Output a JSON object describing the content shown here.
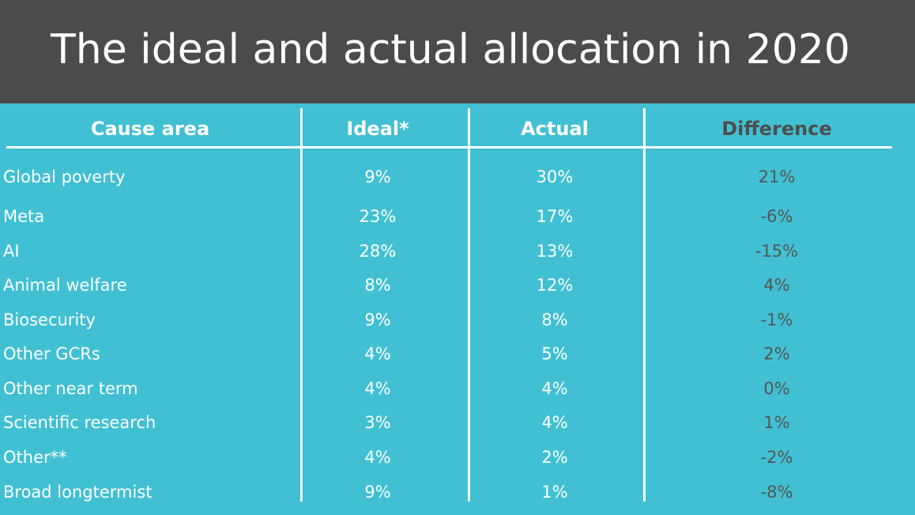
{
  "header": {
    "title": "The ideal and actual allocation in 2020"
  },
  "table": {
    "columns": [
      "Cause area",
      "Ideal*",
      "Actual",
      "Difference"
    ],
    "rows": [
      [
        "Global poverty",
        "9%",
        "30%",
        "21%"
      ],
      [
        "Meta",
        "23%",
        "17%",
        "-6%"
      ],
      [
        "AI",
        "28%",
        "13%",
        "-15%"
      ],
      [
        "Animal welfare",
        "8%",
        "12%",
        "4%"
      ],
      [
        "Biosecurity",
        "9%",
        "8%",
        "-1%"
      ],
      [
        "Other GCRs",
        "4%",
        "5%",
        "2%"
      ],
      [
        "Other near term",
        "4%",
        "4%",
        "0%"
      ],
      [
        "Scientific research",
        "3%",
        "4%",
        "1%"
      ],
      [
        "Other**",
        "4%",
        "2%",
        "-2%"
      ],
      [
        "Broad longtermist",
        "9%",
        "1%",
        "-8%"
      ]
    ]
  }
}
